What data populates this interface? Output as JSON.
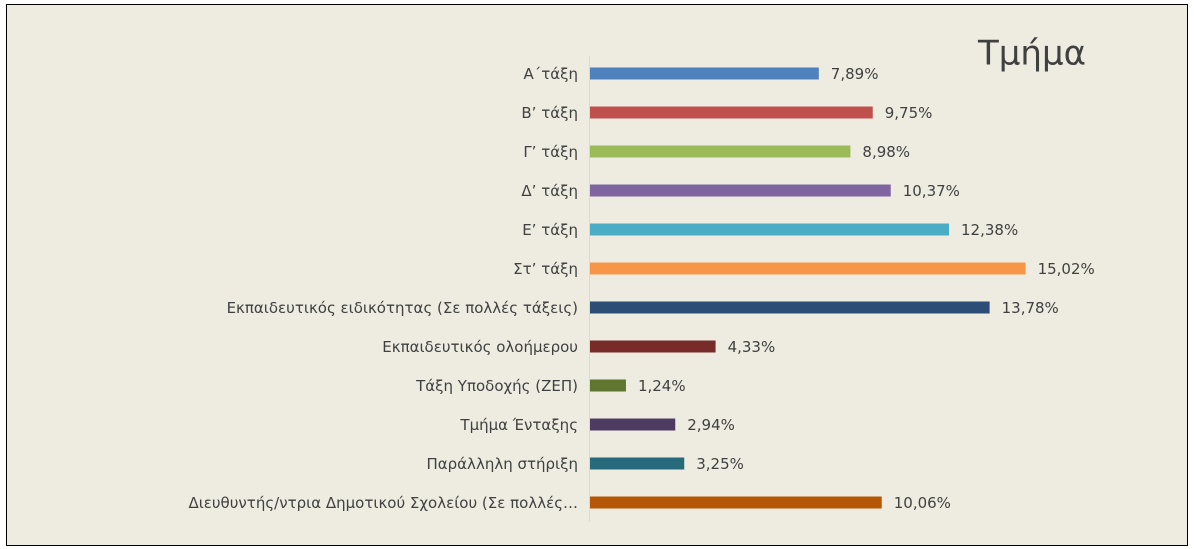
{
  "chart_data": {
    "type": "bar",
    "orientation": "horizontal",
    "title": "Τμήμα",
    "categories": [
      "Α΄τάξη",
      "Β’ τάξη",
      "Γ’ τάξη",
      "Δ’ τάξη",
      "Ε’ τάξη",
      "Στ’ τάξη",
      "Εκπαιδευτικός ειδικότητας (Σε πολλές τάξεις)",
      "Εκπαιδευτικός ολοήμερου",
      "Τάξη Υποδοχής (ΖΕΠ)",
      "Τμήμα Ένταξης",
      "Παράλληλη στήριξη",
      "Διευθυντής/ντρια Δημοτικού Σχολείου (Σε πολλές…"
    ],
    "values": [
      7.89,
      9.75,
      8.98,
      10.37,
      12.38,
      15.02,
      13.78,
      4.33,
      1.24,
      2.94,
      3.25,
      10.06
    ],
    "value_labels": [
      "7,89%",
      "9,75%",
      "8,98%",
      "10,37%",
      "12,38%",
      "15,02%",
      "13,78%",
      "4,33%",
      "1,24%",
      "2,94%",
      "3,25%",
      "10,06%"
    ],
    "colors": [
      "#4f81bd",
      "#c0504d",
      "#9bbb59",
      "#8064a2",
      "#4bacc6",
      "#f79646",
      "#2c4d75",
      "#772c2a",
      "#5f7530",
      "#4d3b62",
      "#276a7c",
      "#b65708"
    ]
  }
}
